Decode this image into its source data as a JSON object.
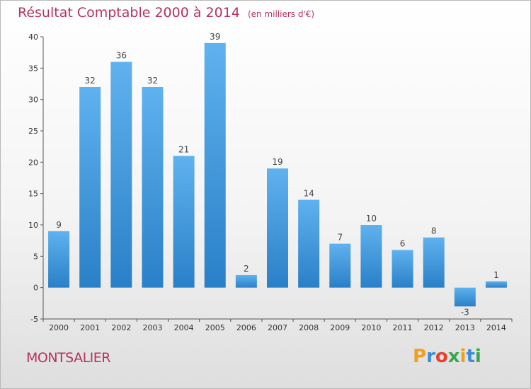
{
  "header": {
    "title": "Résultat Comptable 2000 à 2014",
    "subtitle": "(en milliers d'€)"
  },
  "footer": {
    "commune": "MONTSALIER",
    "logo_text": "Proxiti",
    "logo_colors": [
      "#f0a11c",
      "#3a8ed8",
      "#e8402a",
      "#38a84a",
      "#f0a11c",
      "#3a8ed8",
      "#38a84a"
    ]
  },
  "colors": {
    "bar_top": "#5fb2ee",
    "bar_bottom": "#2a80c8",
    "title": "#b5345c"
  },
  "chart_data": {
    "type": "bar",
    "title": "Résultat Comptable 2000 à 2014",
    "subtitle": "(en milliers d'€)",
    "xlabel": "",
    "ylabel": "",
    "categories": [
      "2000",
      "2001",
      "2002",
      "2003",
      "2004",
      "2005",
      "2006",
      "2007",
      "2008",
      "2009",
      "2010",
      "2011",
      "2012",
      "2013",
      "2014"
    ],
    "values": [
      9,
      32,
      36,
      32,
      21,
      39,
      2,
      19,
      14,
      7,
      10,
      6,
      8,
      -3,
      1
    ],
    "ylim": [
      -5,
      40
    ],
    "yticks": [
      -5,
      0,
      5,
      10,
      15,
      20,
      25,
      30,
      35,
      40
    ],
    "grid": false,
    "legend": "none"
  }
}
